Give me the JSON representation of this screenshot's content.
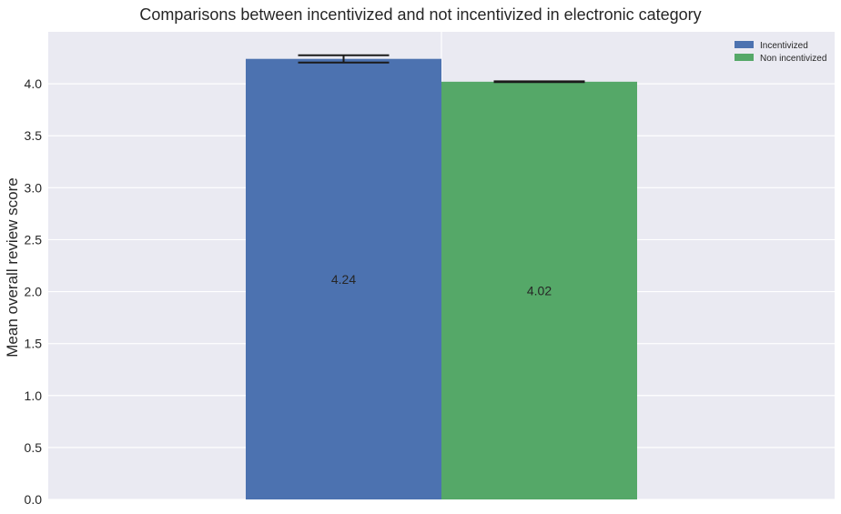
{
  "chart_data": {
    "type": "bar",
    "title": "Comparisons between incentivized and not incentivized in electronic category",
    "xlabel": "",
    "ylabel": "Mean overall review score",
    "ylim": [
      0,
      4.5
    ],
    "yticks": [
      "0.0",
      "0.5",
      "1.0",
      "1.5",
      "2.0",
      "2.5",
      "3.0",
      "3.5",
      "4.0"
    ],
    "grid": true,
    "legend_position": "top-right",
    "series": [
      {
        "name": "Incentivized",
        "value": 4.24,
        "label": "4.24",
        "error": 0.035,
        "color": "#4c72b0"
      },
      {
        "name": "Non incentivized",
        "value": 4.02,
        "label": "4.02",
        "error": 0.004,
        "color": "#55a868"
      }
    ]
  }
}
